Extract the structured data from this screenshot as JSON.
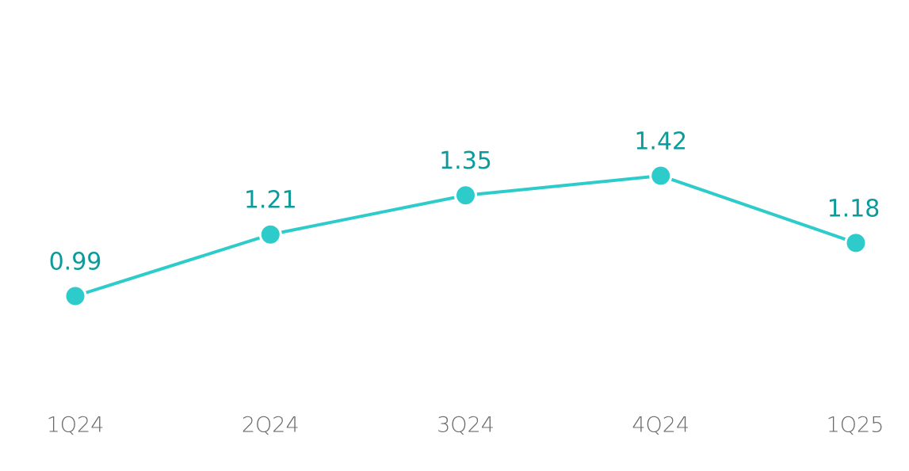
{
  "chart_data": {
    "type": "line",
    "categories": [
      "1Q24",
      "2Q24",
      "3Q24",
      "4Q24",
      "1Q25"
    ],
    "values": [
      0.99,
      1.21,
      1.35,
      1.42,
      1.18
    ],
    "color": "#2ecbcb"
  }
}
